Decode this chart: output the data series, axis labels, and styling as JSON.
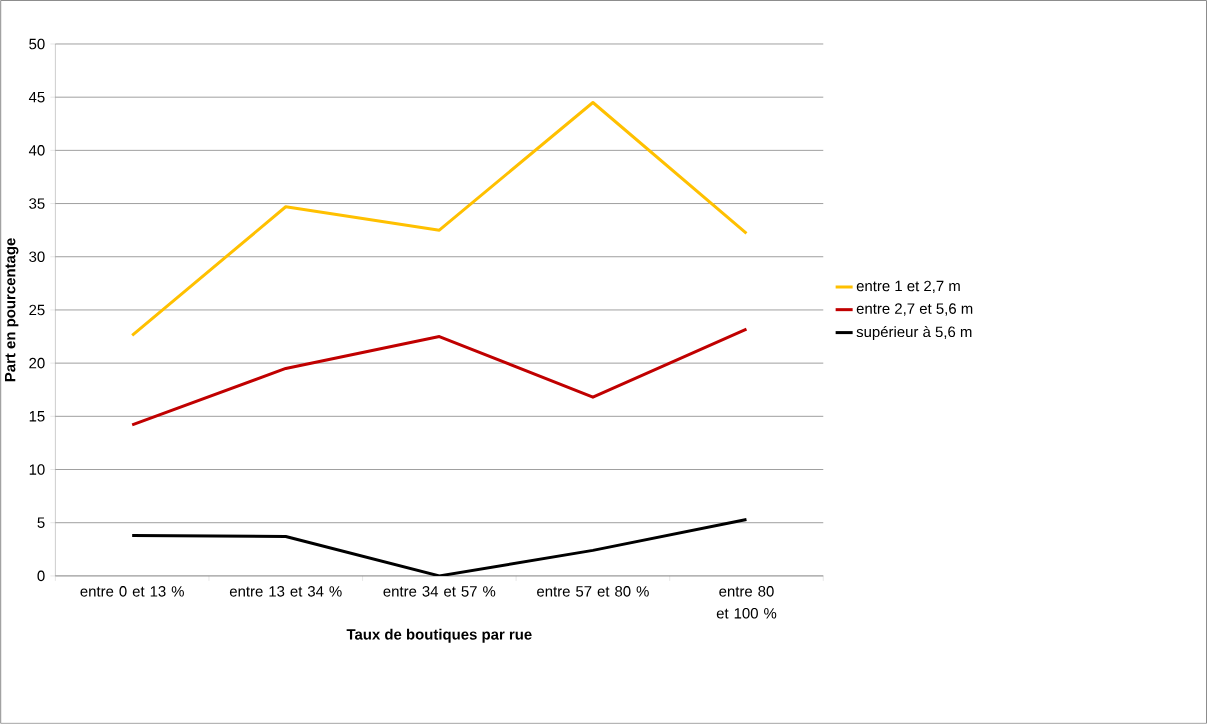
{
  "chart_data": {
    "type": "line",
    "xlabel": "Taux de boutiques par rue",
    "ylabel": "Part en pourcentage",
    "categories": [
      "entre 0 et 13 %",
      "entre 13 et 34 %",
      "entre 34 et 57 %",
      "entre 57 et 80 %",
      "entre 80 et 100 %"
    ],
    "series": [
      {
        "name": "entre 1 et 2,7 m",
        "color": "#ffc000",
        "values": [
          22.6,
          34.7,
          32.5,
          44.5,
          32.2
        ]
      },
      {
        "name": "entre 2,7 et 5,6 m",
        "color": "#c00000",
        "values": [
          14.2,
          19.5,
          22.5,
          16.8,
          23.2
        ]
      },
      {
        "name": "supérieur à 5,6 m",
        "color": "#000000",
        "values": [
          3.8,
          3.7,
          0,
          2.4,
          5.3
        ]
      }
    ],
    "ylim": [
      0,
      50
    ],
    "yticks": [
      0,
      5,
      10,
      15,
      20,
      25,
      30,
      35,
      40,
      45,
      50
    ],
    "grid": "y",
    "legend": "right",
    "marker": "none",
    "line_style": "solid"
  }
}
